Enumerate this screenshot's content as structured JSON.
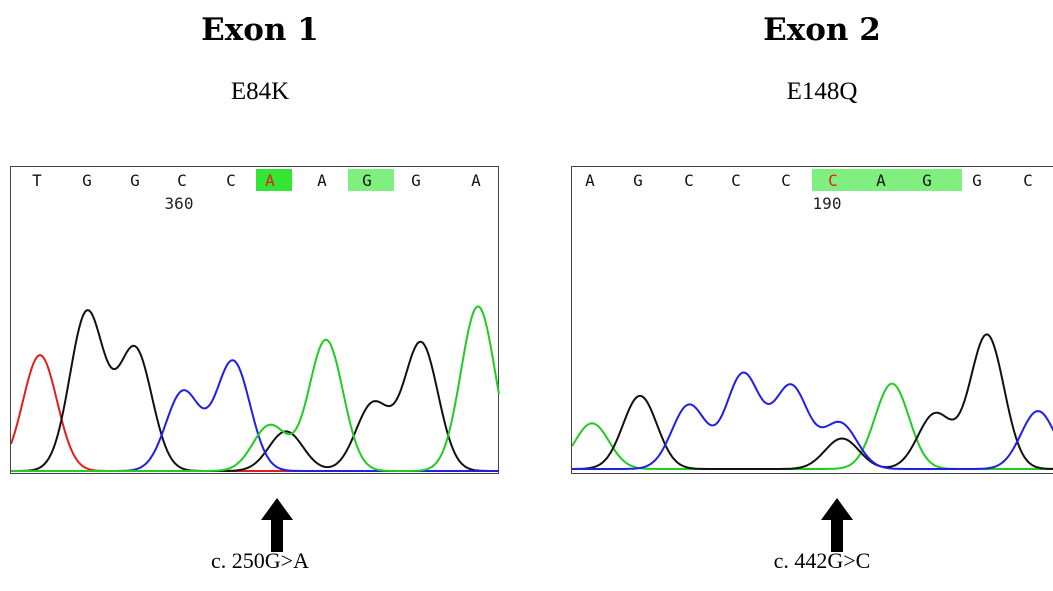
{
  "colors": {
    "A": "#21cc21",
    "C": "#1f1fe6",
    "G": "#111111",
    "T": "#e51c1c",
    "highlight": "#33e633",
    "highlight_light": "#7ff07f",
    "mutant_label": "#e51c1c"
  },
  "panels": [
    {
      "exon": "Exon 1",
      "mutation": "E84K",
      "position_label": "360",
      "hgvs": "c. 250G>A",
      "bases": [
        "T",
        "G",
        "G",
        "C",
        "C",
        "A",
        "A",
        "G",
        "G",
        "A"
      ],
      "highlighted_bases": [
        5,
        7
      ],
      "mutant_base_index": 5,
      "peak_heights": {
        "T": [
          0.38
        ],
        "G": [
          0.52,
          0.4,
          0.13,
          0.22,
          0.42
        ],
        "C": [
          0.26,
          0.36
        ],
        "A": [
          0.15,
          0.43,
          0.54
        ]
      }
    },
    {
      "exon": "Exon 2",
      "mutation": "E148Q",
      "position_label": "190",
      "hgvs": "c. 442G>C",
      "bases": [
        "A",
        "G",
        "C",
        "C",
        "C",
        "C",
        "A",
        "G",
        "G",
        "C"
      ],
      "highlighted_bases": [
        5,
        6,
        7
      ],
      "mutant_base_index": 5,
      "peak_heights": {
        "A": [
          0.15,
          0.28
        ],
        "G": [
          0.24,
          0.1,
          0.18,
          0.44
        ],
        "C": [
          0.21,
          0.31,
          0.27,
          0.15,
          0.19
        ]
      }
    }
  ]
}
